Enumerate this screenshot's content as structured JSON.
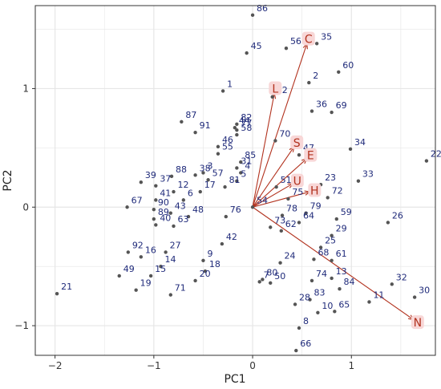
{
  "chart_data": {
    "type": "scatter",
    "subtype": "pca-biplot",
    "title": "",
    "xlabel": "PC1",
    "ylabel": "PC2",
    "xlim": [
      -2.2,
      1.85
    ],
    "ylim": [
      -1.25,
      1.7
    ],
    "xticks": [
      -2,
      -1,
      0,
      1
    ],
    "yticks": [
      -1,
      0,
      1
    ],
    "grid": true,
    "colors": {
      "points": "#555555",
      "point_labels": "#1f2a7a",
      "vectors": "#b2321e",
      "vector_label_bg": "#f8d7d7",
      "grid": "#e6e6e6",
      "panel_border": "#333333"
    },
    "points": [
      {
        "label": "1",
        "x": -0.3,
        "y": 0.98
      },
      {
        "label": "2",
        "x": 0.57,
        "y": 1.05
      },
      {
        "label": "3",
        "x": -0.5,
        "y": 0.29
      },
      {
        "label": "4",
        "x": -0.12,
        "y": 0.29
      },
      {
        "label": "5",
        "x": -0.16,
        "y": 0.22
      },
      {
        "label": "6",
        "x": -0.7,
        "y": 0.06
      },
      {
        "label": "7",
        "x": 0.07,
        "y": -0.63
      },
      {
        "label": "8",
        "x": 0.47,
        "y": -1.02
      },
      {
        "label": "9",
        "x": -0.5,
        "y": -0.45
      },
      {
        "label": "10",
        "x": 0.66,
        "y": -0.89
      },
      {
        "label": "11",
        "x": 1.18,
        "y": -0.8
      },
      {
        "label": "12",
        "x": -0.8,
        "y": 0.13
      },
      {
        "label": "13",
        "x": 0.8,
        "y": -0.6
      },
      {
        "label": "14",
        "x": -0.93,
        "y": -0.5
      },
      {
        "label": "15",
        "x": -1.03,
        "y": -0.58
      },
      {
        "label": "16",
        "x": -1.13,
        "y": -0.42
      },
      {
        "label": "17",
        "x": -0.53,
        "y": 0.13
      },
      {
        "label": "18",
        "x": -0.48,
        "y": -0.54
      },
      {
        "label": "19",
        "x": -1.18,
        "y": -0.7
      },
      {
        "label": "20",
        "x": -0.58,
        "y": -0.62
      },
      {
        "label": "21",
        "x": -1.98,
        "y": -0.73
      },
      {
        "label": "22",
        "x": 1.76,
        "y": 0.39
      },
      {
        "label": "23",
        "x": 0.69,
        "y": 0.19
      },
      {
        "label": "24",
        "x": 0.28,
        "y": -0.47
      },
      {
        "label": "25",
        "x": 0.69,
        "y": -0.34
      },
      {
        "label": "26",
        "x": 1.37,
        "y": -0.13
      },
      {
        "label": "27",
        "x": -0.88,
        "y": -0.38
      },
      {
        "label": "28",
        "x": 0.43,
        "y": -0.82
      },
      {
        "label": "29",
        "x": 0.8,
        "y": -0.24
      },
      {
        "label": "30",
        "x": 1.64,
        "y": -0.76
      },
      {
        "label": "31",
        "x": -0.16,
        "y": 0.33
      },
      {
        "label": "32",
        "x": 1.41,
        "y": -0.65
      },
      {
        "label": "33",
        "x": 1.07,
        "y": 0.22
      },
      {
        "label": "34",
        "x": 0.99,
        "y": 0.49
      },
      {
        "label": "35",
        "x": 0.65,
        "y": 1.38
      },
      {
        "label": "36",
        "x": 0.6,
        "y": 0.81
      },
      {
        "label": "37",
        "x": -0.98,
        "y": 0.18
      },
      {
        "label": "38",
        "x": -0.58,
        "y": 0.27
      },
      {
        "label": "39",
        "x": -1.13,
        "y": 0.21
      },
      {
        "label": "40",
        "x": -0.98,
        "y": -0.15
      },
      {
        "label": "41",
        "x": -0.98,
        "y": 0.06
      },
      {
        "label": "42",
        "x": -0.31,
        "y": -0.31
      },
      {
        "label": "43",
        "x": -0.83,
        "y": -0.05
      },
      {
        "label": "44",
        "x": -0.18,
        "y": 0.67
      },
      {
        "label": "45",
        "x": -0.06,
        "y": 1.3
      },
      {
        "label": "46",
        "x": -0.35,
        "y": 0.51
      },
      {
        "label": "47",
        "x": 0.47,
        "y": 0.44
      },
      {
        "label": "48",
        "x": -0.65,
        "y": -0.08
      },
      {
        "label": "49",
        "x": -1.35,
        "y": -0.58
      },
      {
        "label": "50",
        "x": 0.18,
        "y": -0.64
      },
      {
        "label": "51",
        "x": 0.24,
        "y": 0.17
      },
      {
        "label": "52",
        "x": 0.2,
        "y": 0.93
      },
      {
        "label": "54",
        "x": 0.0,
        "y": 0.0
      },
      {
        "label": "55",
        "x": -0.35,
        "y": 0.45
      },
      {
        "label": "56",
        "x": 0.34,
        "y": 1.34
      },
      {
        "label": "57",
        "x": -0.45,
        "y": 0.23
      },
      {
        "label": "58",
        "x": -0.16,
        "y": 0.61
      },
      {
        "label": "59",
        "x": 0.85,
        "y": -0.1
      },
      {
        "label": "60",
        "x": 0.87,
        "y": 1.14
      },
      {
        "label": "61",
        "x": 0.8,
        "y": -0.45
      },
      {
        "label": "62",
        "x": 0.29,
        "y": -0.2
      },
      {
        "label": "63",
        "x": -0.8,
        "y": -0.16
      },
      {
        "label": "64",
        "x": 0.47,
        "y": -0.13
      },
      {
        "label": "65",
        "x": 0.83,
        "y": -0.88
      },
      {
        "label": "66",
        "x": 0.44,
        "y": -1.21
      },
      {
        "label": "67",
        "x": -1.27,
        "y": 0.0
      },
      {
        "label": "68",
        "x": 0.62,
        "y": -0.44
      },
      {
        "label": "69",
        "x": 0.8,
        "y": 0.8
      },
      {
        "label": "70",
        "x": 0.23,
        "y": 0.56
      },
      {
        "label": "71",
        "x": -0.83,
        "y": -0.74
      },
      {
        "label": "72",
        "x": 0.76,
        "y": 0.08
      },
      {
        "label": "73",
        "x": 0.18,
        "y": -0.17
      },
      {
        "label": "74",
        "x": 0.6,
        "y": -0.62
      },
      {
        "label": "75",
        "x": 0.36,
        "y": 0.07
      },
      {
        "label": "76",
        "x": -0.27,
        "y": -0.08
      },
      {
        "label": "77",
        "x": -0.16,
        "y": 0.65
      },
      {
        "label": "78",
        "x": 0.3,
        "y": -0.07
      },
      {
        "label": "79",
        "x": 0.54,
        "y": -0.05
      },
      {
        "label": "80",
        "x": 0.1,
        "y": -0.61
      },
      {
        "label": "81",
        "x": -0.28,
        "y": 0.17
      },
      {
        "label": "82",
        "x": -0.16,
        "y": 0.7
      },
      {
        "label": "83",
        "x": 0.58,
        "y": -0.78
      },
      {
        "label": "84",
        "x": 0.88,
        "y": -0.69
      },
      {
        "label": "85",
        "x": -0.12,
        "y": 0.38
      },
      {
        "label": "86",
        "x": 0.0,
        "y": 1.62
      },
      {
        "label": "87",
        "x": -0.72,
        "y": 0.72
      },
      {
        "label": "88",
        "x": -0.82,
        "y": 0.26
      },
      {
        "label": "89",
        "x": -1.0,
        "y": -0.1
      },
      {
        "label": "90",
        "x": -1.0,
        "y": -0.02
      },
      {
        "label": "91",
        "x": -0.58,
        "y": 0.63
      },
      {
        "label": "92",
        "x": -1.26,
        "y": -0.38
      }
    ],
    "loadings": [
      {
        "label": "C",
        "x": 0.55,
        "y": 1.38
      },
      {
        "label": "L",
        "x": 0.22,
        "y": 0.96
      },
      {
        "label": "S",
        "x": 0.42,
        "y": 0.51
      },
      {
        "label": "E",
        "x": 0.55,
        "y": 0.41
      },
      {
        "label": "U",
        "x": 0.41,
        "y": 0.2
      },
      {
        "label": "H",
        "x": 0.58,
        "y": 0.13
      },
      {
        "label": "N",
        "x": 1.63,
        "y": -0.95
      }
    ]
  }
}
